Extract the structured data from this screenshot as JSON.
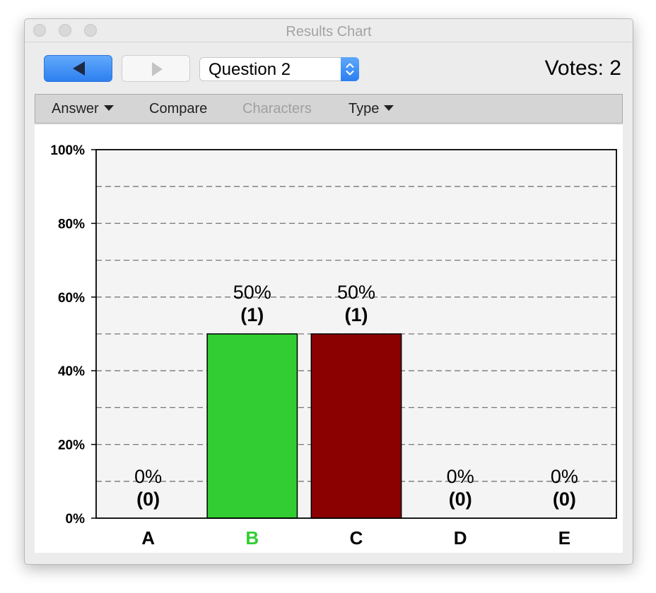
{
  "window": {
    "title": "Results Chart"
  },
  "toolbar": {
    "question_select": "Question 2",
    "votes_label": "Votes: 2"
  },
  "menu": {
    "items": [
      {
        "label": "Answer",
        "dropdown": true,
        "enabled": true
      },
      {
        "label": "Compare",
        "dropdown": false,
        "enabled": true
      },
      {
        "label": "Characters",
        "dropdown": false,
        "enabled": false
      },
      {
        "label": "Type",
        "dropdown": true,
        "enabled": true
      }
    ]
  },
  "chart_data": {
    "type": "bar",
    "categories": [
      "A",
      "B",
      "C",
      "D",
      "E"
    ],
    "values": [
      0,
      50,
      50,
      0,
      0
    ],
    "counts": [
      0,
      1,
      1,
      0,
      0
    ],
    "value_labels": [
      "0%",
      "50%",
      "50%",
      "0%",
      "0%"
    ],
    "count_labels": [
      "(0)",
      "(1)",
      "(1)",
      "(0)",
      "(0)"
    ],
    "ylim": [
      0,
      100
    ],
    "yticks": [
      0,
      20,
      40,
      60,
      80,
      100
    ],
    "ytick_labels": [
      "0%",
      "20%",
      "40%",
      "60%",
      "80%",
      "100%"
    ],
    "grid_lines": [
      10,
      30,
      50,
      70,
      90
    ],
    "grid": true,
    "bar_colors": [
      "#32cd32",
      "#32cd32",
      "#8b0000",
      "#8b0000",
      "#8b0000"
    ],
    "category_label_colors": [
      "#000000",
      "#32cd32",
      "#000000",
      "#000000",
      "#000000"
    ]
  }
}
